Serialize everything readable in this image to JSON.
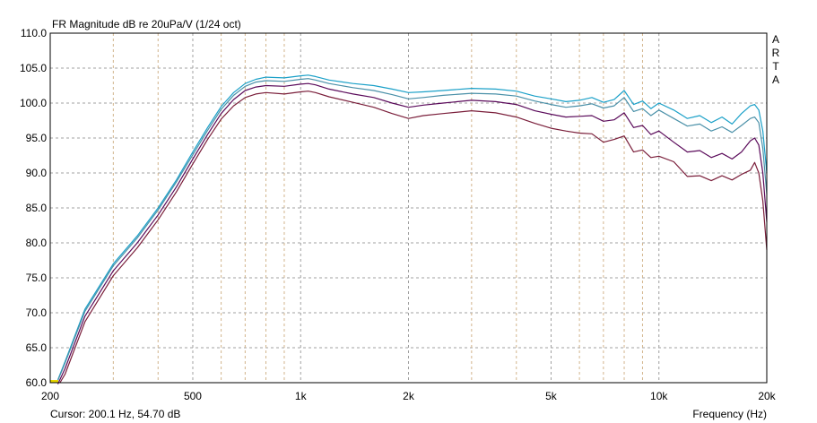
{
  "chart_data": {
    "type": "line",
    "title": "FR Magnitude dB re 20uPa/V (1/24 oct)",
    "watermark": "ARTA",
    "xlabel": "Frequency (Hz)",
    "cursor_readout": "Cursor: 200.1 Hz, 54.70 dB",
    "x_scale": "log",
    "xlim": [
      200,
      20000
    ],
    "ylim": [
      60,
      110
    ],
    "grid": true,
    "x_ticks": [
      {
        "value": 200,
        "label": "200"
      },
      {
        "value": 500,
        "label": "500"
      },
      {
        "value": 1000,
        "label": "1k"
      },
      {
        "value": 2000,
        "label": "2k"
      },
      {
        "value": 5000,
        "label": "5k"
      },
      {
        "value": 10000,
        "label": "10k"
      },
      {
        "value": 20000,
        "label": "20k"
      }
    ],
    "x_minor_grid": [
      300,
      400,
      600,
      700,
      800,
      900,
      3000,
      4000,
      6000,
      7000,
      8000,
      9000
    ],
    "y_ticks": [
      "60.0",
      "65.0",
      "70.0",
      "75.0",
      "80.0",
      "85.0",
      "90.0",
      "95.0",
      "100.0",
      "105.0",
      "110.0"
    ],
    "y_tick_values": [
      60,
      65,
      70,
      75,
      80,
      85,
      90,
      95,
      100,
      105,
      110
    ],
    "series": [
      {
        "color": "#1aa0c8",
        "points": [
          [
            210,
            60.4
          ],
          [
            220,
            63
          ],
          [
            250,
            70.5
          ],
          [
            300,
            77
          ],
          [
            350,
            81
          ],
          [
            400,
            85
          ],
          [
            450,
            89
          ],
          [
            500,
            93
          ],
          [
            550,
            96.5
          ],
          [
            600,
            99.5
          ],
          [
            650,
            101.5
          ],
          [
            700,
            102.8
          ],
          [
            750,
            103.4
          ],
          [
            800,
            103.7
          ],
          [
            900,
            103.6
          ],
          [
            1000,
            103.9
          ],
          [
            1050,
            104.0
          ],
          [
            1100,
            103.8
          ],
          [
            1200,
            103.3
          ],
          [
            1400,
            102.8
          ],
          [
            1600,
            102.5
          ],
          [
            1800,
            102.0
          ],
          [
            2000,
            101.5
          ],
          [
            2200,
            101.6
          ],
          [
            2500,
            101.8
          ],
          [
            3000,
            102.1
          ],
          [
            3500,
            102.0
          ],
          [
            4000,
            101.7
          ],
          [
            4500,
            101.0
          ],
          [
            5000,
            100.6
          ],
          [
            5500,
            100.2
          ],
          [
            6000,
            100.4
          ],
          [
            6500,
            100.8
          ],
          [
            7000,
            100.1
          ],
          [
            7500,
            100.5
          ],
          [
            8000,
            101.8
          ],
          [
            8500,
            99.8
          ],
          [
            9000,
            100.3
          ],
          [
            9500,
            99.2
          ],
          [
            10000,
            100.0
          ],
          [
            11000,
            99.0
          ],
          [
            12000,
            97.8
          ],
          [
            13000,
            98.2
          ],
          [
            14000,
            97.2
          ],
          [
            15000,
            98.0
          ],
          [
            16000,
            97.0
          ],
          [
            17000,
            98.5
          ],
          [
            18000,
            99.6
          ],
          [
            18500,
            99.8
          ],
          [
            19000,
            99.0
          ],
          [
            19500,
            96.0
          ],
          [
            20000,
            90.0
          ]
        ]
      },
      {
        "color": "#4a90a8",
        "points": [
          [
            210,
            60.3
          ],
          [
            220,
            62.8
          ],
          [
            250,
            70.2
          ],
          [
            300,
            76.7
          ],
          [
            350,
            80.7
          ],
          [
            400,
            84.7
          ],
          [
            450,
            88.7
          ],
          [
            500,
            92.6
          ],
          [
            550,
            96.1
          ],
          [
            600,
            99.1
          ],
          [
            650,
            101.1
          ],
          [
            700,
            102.4
          ],
          [
            750,
            103.0
          ],
          [
            800,
            103.2
          ],
          [
            900,
            103.1
          ],
          [
            1000,
            103.4
          ],
          [
            1050,
            103.5
          ],
          [
            1100,
            103.3
          ],
          [
            1200,
            102.8
          ],
          [
            1400,
            102.2
          ],
          [
            1600,
            101.8
          ],
          [
            1800,
            101.2
          ],
          [
            2000,
            100.6
          ],
          [
            2200,
            100.8
          ],
          [
            2500,
            101.1
          ],
          [
            3000,
            101.4
          ],
          [
            3500,
            101.3
          ],
          [
            4000,
            101.0
          ],
          [
            4500,
            100.3
          ],
          [
            5000,
            99.8
          ],
          [
            5500,
            99.4
          ],
          [
            6000,
            99.6
          ],
          [
            6500,
            99.9
          ],
          [
            7000,
            99.3
          ],
          [
            7500,
            99.6
          ],
          [
            8000,
            100.8
          ],
          [
            8500,
            98.8
          ],
          [
            9000,
            99.2
          ],
          [
            9500,
            98.2
          ],
          [
            10000,
            99.0
          ],
          [
            11000,
            97.8
          ],
          [
            12000,
            96.7
          ],
          [
            13000,
            97.0
          ],
          [
            14000,
            96.0
          ],
          [
            15000,
            96.6
          ],
          [
            16000,
            95.8
          ],
          [
            17000,
            96.8
          ],
          [
            18000,
            97.8
          ],
          [
            18500,
            98.0
          ],
          [
            19000,
            97.2
          ],
          [
            19500,
            93.5
          ],
          [
            20000,
            87.0
          ]
        ]
      },
      {
        "color": "#5a0a5a",
        "points": [
          [
            210,
            59.8
          ],
          [
            220,
            62.0
          ],
          [
            250,
            69.5
          ],
          [
            300,
            76.0
          ],
          [
            350,
            80.0
          ],
          [
            400,
            84.0
          ],
          [
            450,
            88.0
          ],
          [
            500,
            92.0
          ],
          [
            550,
            95.5
          ],
          [
            600,
            98.5
          ],
          [
            650,
            100.5
          ],
          [
            700,
            101.8
          ],
          [
            750,
            102.3
          ],
          [
            800,
            102.5
          ],
          [
            900,
            102.4
          ],
          [
            1000,
            102.7
          ],
          [
            1050,
            102.8
          ],
          [
            1100,
            102.6
          ],
          [
            1200,
            102.0
          ],
          [
            1400,
            101.3
          ],
          [
            1600,
            100.8
          ],
          [
            1800,
            100.0
          ],
          [
            2000,
            99.4
          ],
          [
            2200,
            99.7
          ],
          [
            2500,
            100.0
          ],
          [
            3000,
            100.4
          ],
          [
            3500,
            100.2
          ],
          [
            4000,
            99.8
          ],
          [
            4500,
            98.9
          ],
          [
            5000,
            98.4
          ],
          [
            5500,
            98.0
          ],
          [
            6000,
            98.1
          ],
          [
            6500,
            98.2
          ],
          [
            7000,
            97.4
          ],
          [
            7500,
            97.6
          ],
          [
            8000,
            98.6
          ],
          [
            8500,
            96.5
          ],
          [
            9000,
            96.8
          ],
          [
            9500,
            95.5
          ],
          [
            10000,
            96.0
          ],
          [
            11000,
            94.4
          ],
          [
            12000,
            93.0
          ],
          [
            13000,
            93.2
          ],
          [
            14000,
            92.2
          ],
          [
            15000,
            92.8
          ],
          [
            16000,
            92.0
          ],
          [
            17000,
            93.0
          ],
          [
            18000,
            94.6
          ],
          [
            18500,
            95.0
          ],
          [
            19000,
            94.0
          ],
          [
            19500,
            90.0
          ],
          [
            20000,
            83.0
          ]
        ]
      },
      {
        "color": "#7a1e3a",
        "points": [
          [
            213,
            60.0
          ],
          [
            220,
            61.2
          ],
          [
            250,
            68.7
          ],
          [
            300,
            75.3
          ],
          [
            350,
            79.3
          ],
          [
            400,
            83.3
          ],
          [
            450,
            87.3
          ],
          [
            500,
            91.3
          ],
          [
            550,
            94.8
          ],
          [
            600,
            97.7
          ],
          [
            650,
            99.6
          ],
          [
            700,
            100.8
          ],
          [
            750,
            101.3
          ],
          [
            800,
            101.5
          ],
          [
            900,
            101.3
          ],
          [
            1000,
            101.6
          ],
          [
            1050,
            101.7
          ],
          [
            1100,
            101.5
          ],
          [
            1200,
            100.9
          ],
          [
            1400,
            100.1
          ],
          [
            1600,
            99.4
          ],
          [
            1800,
            98.5
          ],
          [
            2000,
            97.8
          ],
          [
            2200,
            98.2
          ],
          [
            2500,
            98.5
          ],
          [
            3000,
            98.9
          ],
          [
            3500,
            98.6
          ],
          [
            4000,
            98.0
          ],
          [
            4500,
            97.1
          ],
          [
            5000,
            96.4
          ],
          [
            5500,
            96.0
          ],
          [
            6000,
            95.7
          ],
          [
            6500,
            95.6
          ],
          [
            7000,
            94.4
          ],
          [
            7500,
            94.8
          ],
          [
            8000,
            95.3
          ],
          [
            8500,
            93.0
          ],
          [
            9000,
            93.3
          ],
          [
            9500,
            92.2
          ],
          [
            10000,
            92.4
          ],
          [
            11000,
            91.6
          ],
          [
            12000,
            89.5
          ],
          [
            13000,
            89.6
          ],
          [
            14000,
            88.9
          ],
          [
            15000,
            89.6
          ],
          [
            16000,
            89.0
          ],
          [
            17000,
            89.8
          ],
          [
            18000,
            90.4
          ],
          [
            18500,
            91.5
          ],
          [
            19000,
            90.0
          ],
          [
            19500,
            86.0
          ],
          [
            20000,
            79.0
          ]
        ]
      }
    ]
  }
}
